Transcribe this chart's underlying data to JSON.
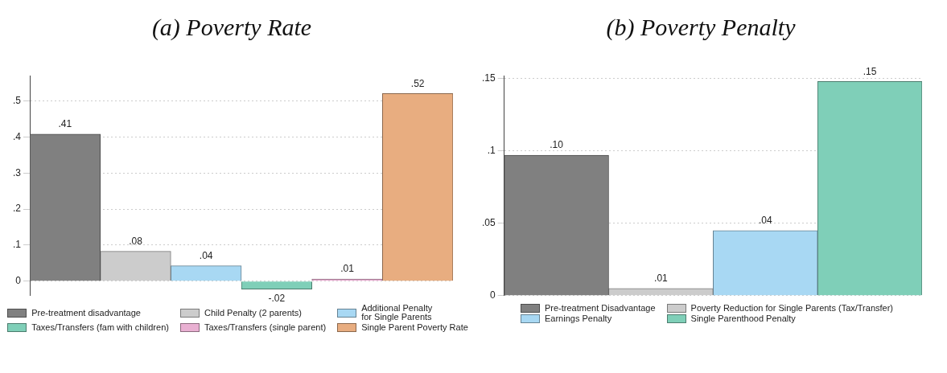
{
  "chart_data": [
    {
      "type": "bar",
      "title": "(a) Poverty Rate",
      "categories": [
        null,
        null,
        null,
        null,
        null,
        null
      ],
      "ylim": [
        -0.04,
        0.57
      ],
      "yticks": [
        0,
        {
          "value": 0.1,
          "label": ".1"
        },
        {
          "value": 0.2,
          "label": ".2"
        },
        {
          "value": 0.3,
          "label": ".3"
        },
        {
          "value": 0.4,
          "label": ".4"
        },
        {
          "value": 0.5,
          "label": ".5"
        }
      ],
      "grid": "y",
      "legend": "bottom",
      "series": [
        {
          "name": "Pre-treatment disadvantage",
          "color": "#808080",
          "values": [
            0.408,
            null,
            null,
            null,
            null,
            null
          ],
          "value_labels": [
            ".41",
            null,
            null,
            null,
            null,
            null
          ]
        },
        {
          "name": "Child Penalty (2 parents)",
          "color": "#cccccc",
          "values": [
            null,
            0.083,
            null,
            null,
            null,
            null
          ],
          "value_labels": [
            null,
            ".08",
            null,
            null,
            null,
            null
          ]
        },
        {
          "name": "Additional Penalty\nfor Single Parents",
          "color": "#a8d8f3",
          "values": [
            null,
            null,
            0.043,
            null,
            null,
            null
          ],
          "value_labels": [
            null,
            null,
            ".04",
            null,
            null,
            null
          ]
        },
        {
          "name": "Taxes/Transfers (fam with children)",
          "color": "#7fcfb8",
          "values": [
            null,
            null,
            null,
            -0.022,
            null,
            null
          ],
          "value_labels": [
            null,
            null,
            null,
            "-.02",
            null,
            null
          ]
        },
        {
          "name": "Taxes/Transfers (single parent)",
          "color": "#e9b0d2",
          "values": [
            null,
            null,
            null,
            null,
            0.006,
            null
          ],
          "value_labels": [
            null,
            null,
            null,
            null,
            ".01",
            null
          ]
        },
        {
          "name": "Single Parent Poverty Rate",
          "color": "#e8ad80",
          "values": [
            null,
            null,
            null,
            null,
            null,
            0.52
          ],
          "value_labels": [
            null,
            null,
            null,
            null,
            null,
            ".52"
          ]
        }
      ]
    },
    {
      "type": "bar",
      "title": "(b) Poverty Penalty",
      "categories": [
        null,
        null,
        null,
        null
      ],
      "ylim": [
        0,
        0.152
      ],
      "yticks": [
        0,
        {
          "value": 0.05,
          "label": ".05"
        },
        {
          "value": 0.1,
          "label": ".1"
        },
        {
          "value": 0.15,
          "label": ".15"
        }
      ],
      "grid": "y",
      "legend": "bottom",
      "series": [
        {
          "name": "Pre-treatment Disadvantage",
          "color": "#808080",
          "values": [
            0.097,
            null,
            null,
            null
          ],
          "value_labels": [
            ".10",
            null,
            null,
            null
          ]
        },
        {
          "name": "Poverty Reduction for Single Parents (Tax/Transfer)",
          "color": "#cccccc",
          "values": [
            null,
            0.005,
            null,
            null
          ],
          "value_labels": [
            null,
            ".01",
            null,
            null
          ]
        },
        {
          "name": "Earnings Penalty",
          "color": "#a8d8f3",
          "values": [
            null,
            null,
            0.045,
            null
          ],
          "value_labels": [
            null,
            null,
            ".04",
            null
          ]
        },
        {
          "name": "Single Parenthood Penalty",
          "color": "#7fcfb8",
          "values": [
            null,
            null,
            null,
            0.148
          ],
          "value_labels": [
            null,
            null,
            null,
            ".15"
          ]
        }
      ]
    }
  ]
}
